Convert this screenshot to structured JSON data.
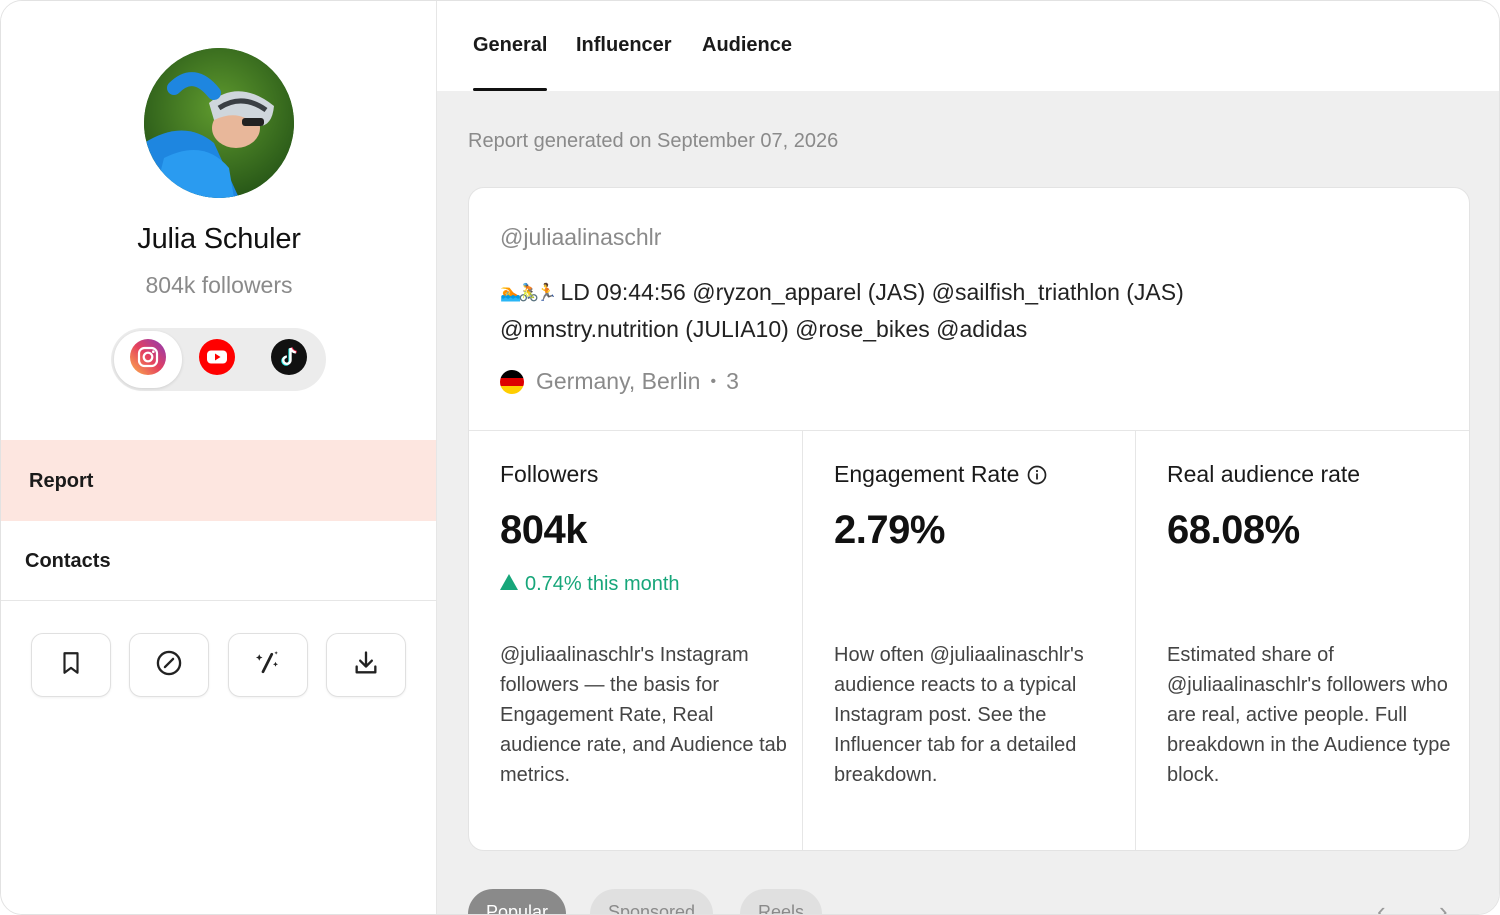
{
  "profile": {
    "name": "Julia Schuler",
    "followers": "804k followers",
    "platforms": [
      "instagram-icon",
      "youtube-icon",
      "tiktok-icon"
    ],
    "active_platform": "instagram"
  },
  "sidebar": {
    "nav": [
      {
        "label": "Report",
        "active": true
      },
      {
        "label": "Contacts",
        "active": false
      }
    ],
    "actions": [
      "bookmark-icon",
      "block-icon",
      "magic-wand-icon",
      "download-icon"
    ]
  },
  "tabs": [
    {
      "label": "General",
      "active": true
    },
    {
      "label": "Influencer",
      "active": false
    },
    {
      "label": "Audience",
      "active": false
    }
  ],
  "report_date": "Report generated on September 07, 2026",
  "account": {
    "handle": "@juliaalinaschlr",
    "bio_emoji": "🏊🚴🏃",
    "bio_line1": "LD 09:44:56 @ryzon_apparel (JAS) @sailfish_triathlon (JAS)",
    "bio_line2": "@mnstry.nutrition (JULIA10) @rose_bikes @adidas",
    "location": "Germany, Berlin",
    "location_sep": "•",
    "location_extra": "3"
  },
  "stats": [
    {
      "label": "Followers",
      "value": "804k",
      "change": "0.74% this month",
      "description": "@juliaalinaschlr's Instagram followers — the basis for Engagement Rate, Real audience rate, and Audience tab metrics."
    },
    {
      "label": "Engagement Rate",
      "value": "2.79%",
      "description": "How often @juliaalinaschlr's audience reacts to a typical Instagram post. See the Influencer tab for a detailed breakdown."
    },
    {
      "label": "Real audience rate",
      "value": "68.08%",
      "description": "Estimated share of @juliaalinaschlr's followers who are real, active people. Full breakdown in the Audience type block."
    }
  ],
  "post_filters": [
    {
      "label": "Popular",
      "active": true
    },
    {
      "label": "Sponsored",
      "active": false
    },
    {
      "label": "Reels",
      "active": false
    }
  ],
  "pager": {
    "prev": "‹",
    "next": "›"
  },
  "colors": {
    "accent_nav": "#fde6e0",
    "positive": "#17a67a",
    "muted": "#8a8a8a"
  }
}
